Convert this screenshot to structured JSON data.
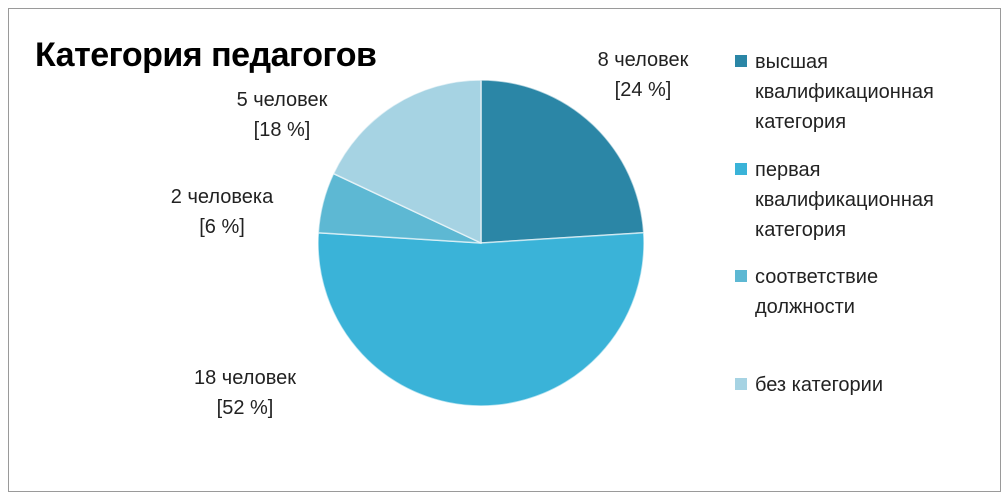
{
  "chart_data": {
    "type": "pie",
    "title": "Категория педагогов",
    "categories": [
      "высшая квалификационная категория",
      "первая квалификационная категория",
      "соответствие должности",
      "без категории"
    ],
    "values": [
      24,
      52,
      6,
      18
    ],
    "value_labels": [
      "8 человек\n[24 %]",
      "18  человек\n[52  %]",
      "2 человека\n[6 %]",
      "5 человек\n[18  %]"
    ],
    "colors": [
      "#2b86a6",
      "#3ab3d8",
      "#5db8d3",
      "#a6d3e3"
    ],
    "legend": "right"
  }
}
